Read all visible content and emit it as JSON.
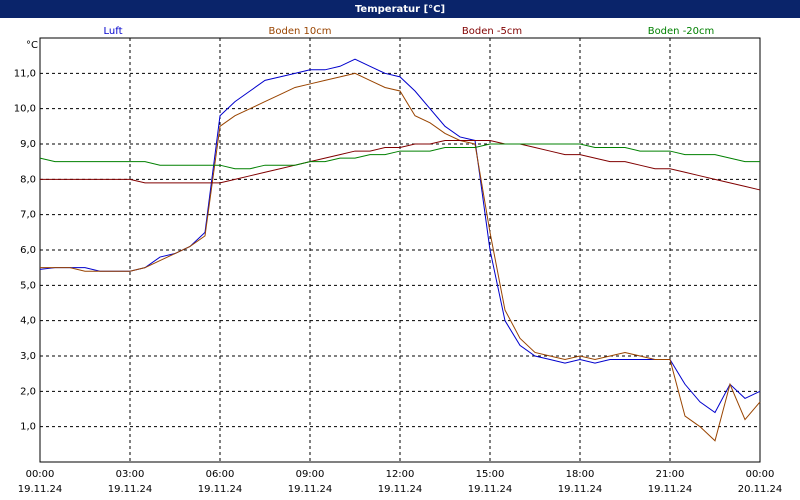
{
  "chart_data": {
    "type": "line",
    "title": "Temperatur [°C]",
    "y_unit": "°C",
    "x": [
      0,
      0.5,
      1,
      1.5,
      2,
      2.5,
      3,
      3.5,
      4,
      4.5,
      5,
      5.5,
      6,
      6.5,
      7,
      7.5,
      8,
      8.5,
      9,
      9.5,
      10,
      10.5,
      11,
      11.5,
      12,
      12.5,
      13,
      13.5,
      14,
      14.5,
      15,
      15.5,
      16,
      16.5,
      17,
      17.5,
      18,
      18.5,
      19,
      19.5,
      20,
      20.5,
      21,
      21.5,
      22,
      22.5,
      23,
      23.5,
      24
    ],
    "series": [
      {
        "name": "Luft",
        "color": "#0000cc",
        "values": [
          5.45,
          5.5,
          5.5,
          5.5,
          5.4,
          5.4,
          5.4,
          5.5,
          5.8,
          5.9,
          6.1,
          6.5,
          9.8,
          10.2,
          10.5,
          10.8,
          10.9,
          11.0,
          11.1,
          11.1,
          11.2,
          11.4,
          11.2,
          11.0,
          10.9,
          10.5,
          10.0,
          9.5,
          9.2,
          9.1,
          6.0,
          4.0,
          3.3,
          3.0,
          2.9,
          2.8,
          2.9,
          2.8,
          2.9,
          2.9,
          2.9,
          2.9,
          2.9,
          2.2,
          1.7,
          1.4,
          2.2,
          1.8,
          2.0
        ]
      },
      {
        "name": "Boden 10cm",
        "color": "#994400",
        "values": [
          5.5,
          5.5,
          5.5,
          5.4,
          5.4,
          5.4,
          5.4,
          5.5,
          5.7,
          5.9,
          6.1,
          6.4,
          9.5,
          9.8,
          10.0,
          10.2,
          10.4,
          10.6,
          10.7,
          10.8,
          10.9,
          11.0,
          10.8,
          10.6,
          10.5,
          9.8,
          9.6,
          9.3,
          9.1,
          9.0,
          6.5,
          4.3,
          3.5,
          3.1,
          3.0,
          2.9,
          3.0,
          2.9,
          3.0,
          3.1,
          3.0,
          2.9,
          2.9,
          1.3,
          1.0,
          0.6,
          2.2,
          1.2,
          1.7
        ]
      },
      {
        "name": "Boden -5cm",
        "color": "#800000",
        "values": [
          8.0,
          8.0,
          8.0,
          8.0,
          8.0,
          8.0,
          8.0,
          7.9,
          7.9,
          7.9,
          7.9,
          7.9,
          7.9,
          8.0,
          8.1,
          8.2,
          8.3,
          8.4,
          8.5,
          8.6,
          8.7,
          8.8,
          8.8,
          8.9,
          8.9,
          9.0,
          9.0,
          9.1,
          9.1,
          9.1,
          9.1,
          9.0,
          9.0,
          8.9,
          8.8,
          8.7,
          8.7,
          8.6,
          8.5,
          8.5,
          8.4,
          8.3,
          8.3,
          8.2,
          8.1,
          8.0,
          7.9,
          7.8,
          7.7
        ]
      },
      {
        "name": "Boden -20cm",
        "color": "#008000",
        "values": [
          8.6,
          8.5,
          8.5,
          8.5,
          8.5,
          8.5,
          8.5,
          8.5,
          8.4,
          8.4,
          8.4,
          8.4,
          8.4,
          8.3,
          8.3,
          8.4,
          8.4,
          8.4,
          8.5,
          8.5,
          8.6,
          8.6,
          8.7,
          8.7,
          8.8,
          8.8,
          8.8,
          8.9,
          8.9,
          8.9,
          9.0,
          9.0,
          9.0,
          9.0,
          9.0,
          9.0,
          9.0,
          8.9,
          8.9,
          8.9,
          8.8,
          8.8,
          8.8,
          8.7,
          8.7,
          8.7,
          8.6,
          8.5,
          8.5
        ]
      }
    ],
    "xlim": [
      0,
      24
    ],
    "xticks": [
      {
        "value": 0,
        "label": "00:00"
      },
      {
        "value": 3,
        "label": "03:00"
      },
      {
        "value": 6,
        "label": "06:00"
      },
      {
        "value": 9,
        "label": "09:00"
      },
      {
        "value": 12,
        "label": "12:00"
      },
      {
        "value": 15,
        "label": "15:00"
      },
      {
        "value": 18,
        "label": "18:00"
      },
      {
        "value": 21,
        "label": "21:00"
      },
      {
        "value": 24,
        "label": "00:00"
      }
    ],
    "xtick_dates": [
      "19.11.24",
      "19.11.24",
      "19.11.24",
      "19.11.24",
      "19.11.24",
      "19.11.24",
      "19.11.24",
      "19.11.24",
      "20.11.24"
    ],
    "ylim": [
      0,
      12
    ],
    "yticks": [
      {
        "value": 1,
        "label": "1,0"
      },
      {
        "value": 2,
        "label": "2,0"
      },
      {
        "value": 3,
        "label": "3,0"
      },
      {
        "value": 4,
        "label": "4,0"
      },
      {
        "value": 5,
        "label": "5,0"
      },
      {
        "value": 6,
        "label": "6,0"
      },
      {
        "value": 7,
        "label": "7,0"
      },
      {
        "value": 8,
        "label": "8,0"
      },
      {
        "value": 9,
        "label": "9,0"
      },
      {
        "value": 10,
        "label": "10,0"
      },
      {
        "value": 11,
        "label": "11,0"
      }
    ],
    "grid": true
  }
}
